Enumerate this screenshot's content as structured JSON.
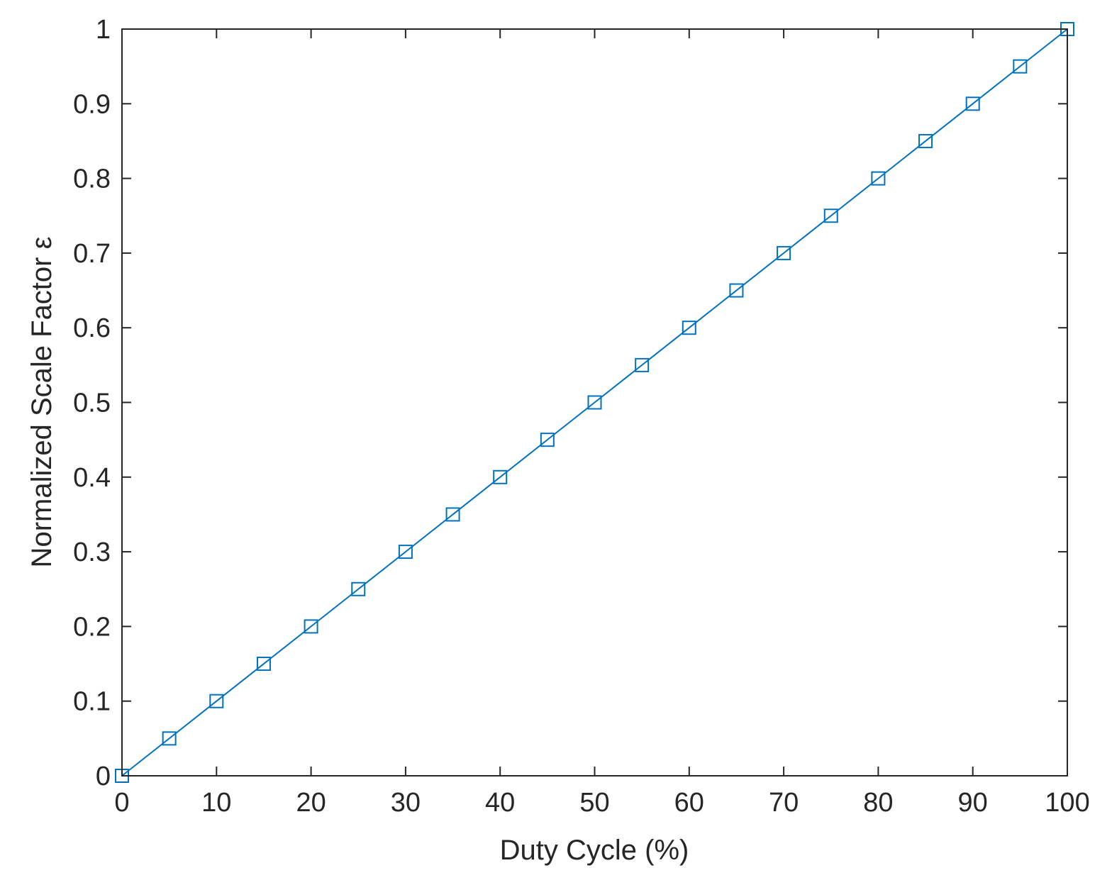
{
  "chart_data": {
    "type": "line",
    "xlabel": "Duty Cycle (%)",
    "ylabel": "Normalized Scale Factor ε",
    "xlim": [
      0,
      100
    ],
    "ylim": [
      0,
      1
    ],
    "x_ticks": [
      "0",
      "10",
      "20",
      "30",
      "40",
      "50",
      "60",
      "70",
      "80",
      "90",
      "100"
    ],
    "y_ticks": [
      "0",
      "0.1",
      "0.2",
      "0.3",
      "0.4",
      "0.5",
      "0.6",
      "0.7",
      "0.8",
      "0.9",
      "1"
    ],
    "grid": false,
    "series": [
      {
        "x": [
          0,
          5,
          10,
          15,
          20,
          25,
          30,
          35,
          40,
          45,
          50,
          55,
          60,
          65,
          70,
          75,
          80,
          85,
          90,
          95,
          100
        ],
        "y": [
          0,
          0.05,
          0.1,
          0.15,
          0.2,
          0.25,
          0.3,
          0.35,
          0.4,
          0.45,
          0.5,
          0.55,
          0.6,
          0.65,
          0.7,
          0.75,
          0.8,
          0.85,
          0.9,
          0.95,
          1.0
        ],
        "marker": "square",
        "color": "#0072bd"
      }
    ]
  }
}
